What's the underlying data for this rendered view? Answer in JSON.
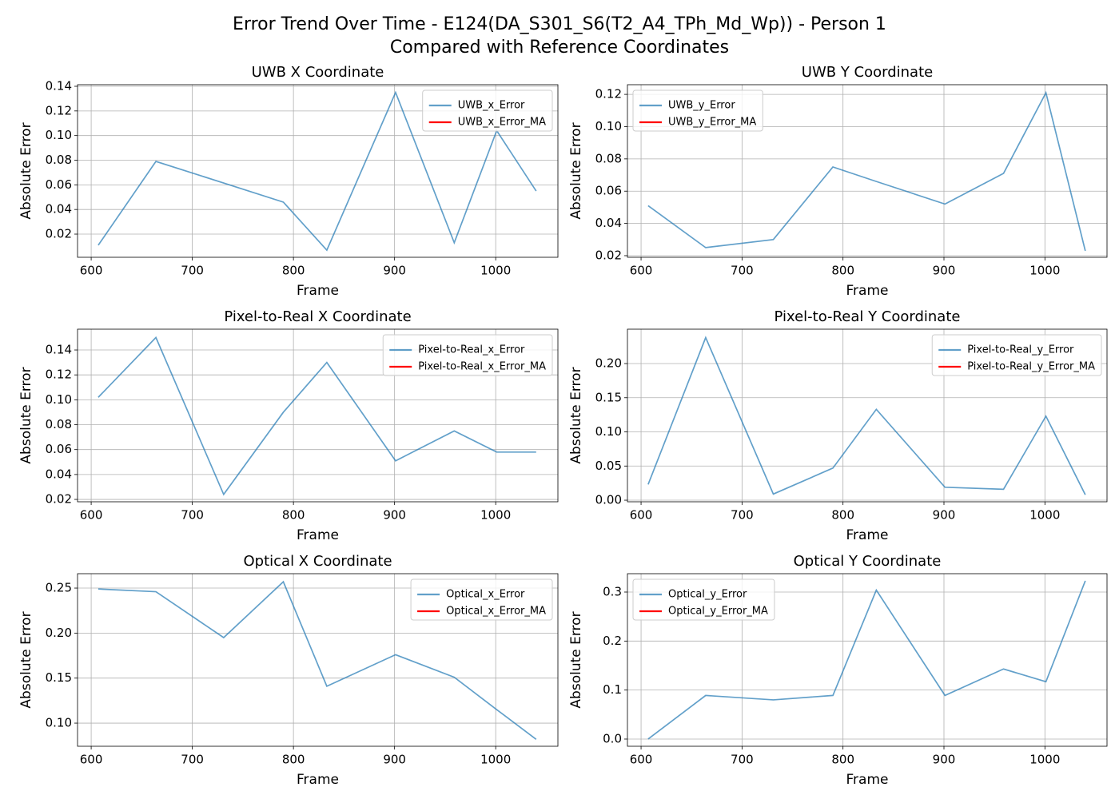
{
  "title": "Error Trend Over Time - E124(DA_S301_S6(T2_A4_TPh_Md_Wp)) - Person 1",
  "subtitle": "Compared with Reference Coordinates",
  "chart_data": [
    {
      "type": "line",
      "title": "UWB X Coordinate",
      "xlabel": "Frame",
      "ylabel": "Absolute Error",
      "x": [
        607,
        664,
        731,
        790,
        833,
        901,
        959,
        1001,
        1040
      ],
      "series": [
        {
          "name": "UWB_x_Error",
          "color": "#1f77b4",
          "values": [
            0.011,
            0.079,
            0.0615,
            0.046,
            0.007,
            0.135,
            0.013,
            0.104,
            0.055
          ]
        },
        {
          "name": "UWB_x_Error_MA",
          "color": "#ff0000",
          "values": [
            null,
            null,
            null,
            null,
            null,
            null,
            null,
            null,
            null
          ]
        }
      ],
      "xlim": [
        586.5,
        1061.5
      ],
      "xticks": [
        600,
        700,
        800,
        900,
        1000
      ],
      "ylim": [
        0.0012,
        0.1413
      ],
      "yticks": [
        0.02,
        0.04,
        0.06,
        0.08,
        {
          "value": 0.1,
          "label": "0.10"
        },
        0.12,
        0.14
      ],
      "grid": true,
      "legend": "upper right"
    },
    {
      "type": "line",
      "title": "UWB Y Coordinate",
      "xlabel": "Frame",
      "ylabel": "Absolute Error",
      "x": [
        607,
        664,
        731,
        790,
        833,
        901,
        959,
        1001,
        1040
      ],
      "series": [
        {
          "name": "UWB_y_Error",
          "color": "#1f77b4",
          "values": [
            0.051,
            0.025,
            0.03,
            0.075,
            0.066,
            0.052,
            0.071,
            0.121,
            0.023
          ]
        },
        {
          "name": "UWB_y_Error_MA",
          "color": "#ff0000",
          "values": [
            null,
            null,
            null,
            null,
            null,
            null,
            null,
            null,
            null
          ]
        }
      ],
      "xlim": [
        586.5,
        1061.5
      ],
      "xticks": [
        600,
        700,
        800,
        900,
        1000
      ],
      "ylim": [
        0.019,
        0.126
      ],
      "yticks": [
        0.02,
        0.04,
        0.06,
        0.08,
        {
          "value": 0.1,
          "label": "0.10"
        },
        0.12
      ],
      "grid": true,
      "legend": "upper left"
    },
    {
      "type": "line",
      "title": "Pixel-to-Real X Coordinate",
      "xlabel": "Frame",
      "ylabel": "Absolute Error",
      "x": [
        607,
        664,
        731,
        790,
        833,
        901,
        959,
        1001,
        1040
      ],
      "series": [
        {
          "name": "Pixel-to-Real_x_Error",
          "color": "#1f77b4",
          "values": [
            0.102,
            0.15,
            0.024,
            0.09,
            0.13,
            0.051,
            0.075,
            0.058,
            0.058
          ]
        },
        {
          "name": "Pixel-to-Real_x_Error_MA",
          "color": "#ff0000",
          "values": [
            null,
            null,
            null,
            null,
            null,
            null,
            null,
            null,
            null
          ]
        }
      ],
      "xlim": [
        586.5,
        1061.5
      ],
      "xticks": [
        600,
        700,
        800,
        900,
        1000
      ],
      "ylim": [
        0.0181,
        0.1567
      ],
      "yticks": [
        0.02,
        0.04,
        0.06,
        0.08,
        {
          "value": 0.1,
          "label": "0.10"
        },
        0.12,
        0.14
      ],
      "grid": true,
      "legend": "upper right"
    },
    {
      "type": "line",
      "title": "Pixel-to-Real Y Coordinate",
      "xlabel": "Frame",
      "ylabel": "Absolute Error",
      "x": [
        607,
        664,
        731,
        790,
        833,
        901,
        959,
        1001,
        1040
      ],
      "series": [
        {
          "name": "Pixel-to-Real_y_Error",
          "color": "#1f77b4",
          "values": [
            0.023,
            0.238,
            0.009,
            0.047,
            0.133,
            0.019,
            0.016,
            0.123,
            0.008
          ]
        },
        {
          "name": "Pixel-to-Real_y_Error_MA",
          "color": "#ff0000",
          "values": [
            null,
            null,
            null,
            null,
            null,
            null,
            null,
            null,
            null
          ]
        }
      ],
      "xlim": [
        586.5,
        1061.5
      ],
      "xticks": [
        600,
        700,
        800,
        900,
        1000
      ],
      "ylim": [
        -0.0023,
        0.2503
      ],
      "yticks": [
        {
          "value": 0,
          "label": "0.00"
        },
        0.05,
        {
          "value": 0.1,
          "label": "0.10"
        },
        0.15,
        {
          "value": 0.2,
          "label": "0.20"
        }
      ],
      "grid": true,
      "legend": "upper right"
    },
    {
      "type": "line",
      "title": "Optical X Coordinate",
      "xlabel": "Frame",
      "ylabel": "Absolute Error",
      "x": [
        607,
        664,
        731,
        790,
        833,
        901,
        959,
        1001,
        1040
      ],
      "series": [
        {
          "name": "Optical_x_Error",
          "color": "#1f77b4",
          "values": [
            0.249,
            0.246,
            0.195,
            0.257,
            0.141,
            0.176,
            0.151,
            0.115,
            0.082
          ]
        },
        {
          "name": "Optical_x_Error_MA",
          "color": "#ff0000",
          "values": [
            null,
            null,
            null,
            null,
            null,
            null,
            null,
            null,
            null
          ]
        }
      ],
      "xlim": [
        586.5,
        1061.5
      ],
      "xticks": [
        600,
        700,
        800,
        900,
        1000
      ],
      "ylim": [
        0.0743,
        0.266
      ],
      "yticks": [
        {
          "value": 0.1,
          "label": "0.10"
        },
        0.15,
        {
          "value": 0.2,
          "label": "0.20"
        },
        0.25
      ],
      "grid": true,
      "legend": "upper right"
    },
    {
      "type": "line",
      "title": "Optical Y Coordinate",
      "xlabel": "Frame",
      "ylabel": "Absolute Error",
      "x": [
        607,
        664,
        731,
        790,
        833,
        901,
        959,
        1001,
        1040
      ],
      "series": [
        {
          "name": "Optical_y_Error",
          "color": "#1f77b4",
          "values": [
            0.0,
            0.089,
            0.08,
            0.089,
            0.304,
            0.089,
            0.143,
            0.117,
            0.323
          ]
        },
        {
          "name": "Optical_y_Error_MA",
          "color": "#ff0000",
          "values": [
            null,
            null,
            null,
            null,
            null,
            null,
            null,
            null,
            null
          ]
        }
      ],
      "xlim": [
        586.5,
        1061.5
      ],
      "xticks": [
        600,
        700,
        800,
        900,
        1000
      ],
      "ylim": [
        -0.0147,
        0.3375
      ],
      "yticks": [
        {
          "value": 0,
          "label": "0.0"
        },
        0.1,
        0.2,
        0.3
      ],
      "grid": true,
      "legend": "upper left"
    }
  ]
}
